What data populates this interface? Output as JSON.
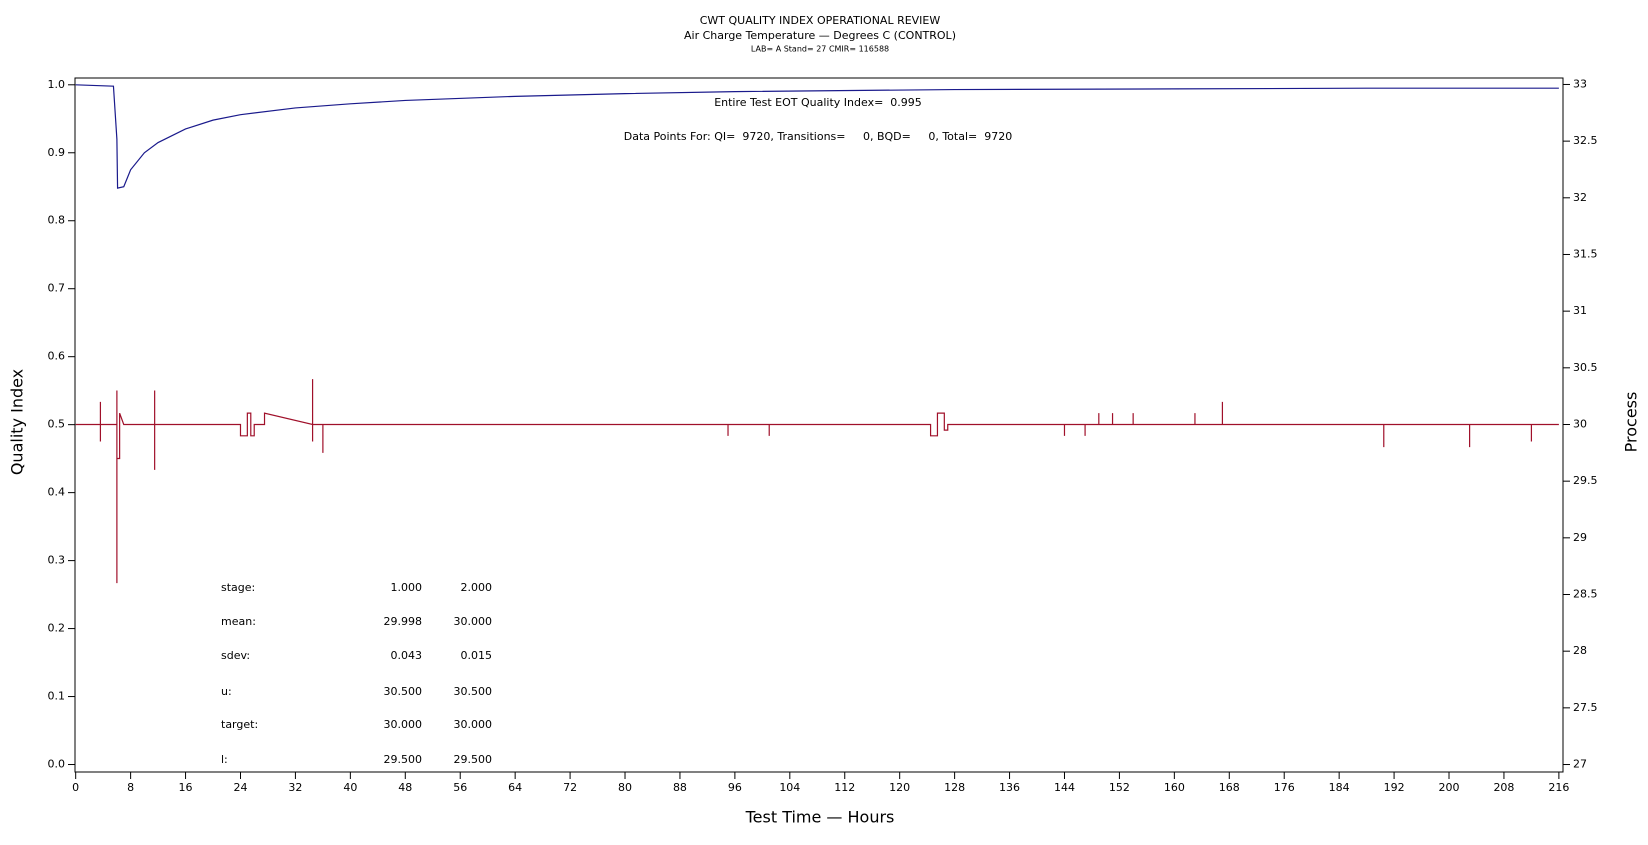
{
  "chart_data": {
    "type": "line",
    "title": "CWT QUALITY INDEX OPERATIONAL REVIEW",
    "subtitles": [
      "Air Charge Temperature — Degrees C (CONTROL)",
      "LAB= A Stand= 27 CMIR= 116588"
    ],
    "xlabel": "Test Time — Hours",
    "ylabel": "Quality Index",
    "y2label": "Process",
    "xlim": [
      -0.1,
      216.6
    ],
    "xticks": [
      0,
      8,
      16,
      24,
      32,
      40,
      48,
      56,
      64,
      72,
      80,
      88,
      96,
      104,
      112,
      120,
      128,
      136,
      144,
      152,
      160,
      168,
      176,
      184,
      192,
      200,
      208,
      216
    ],
    "ylim": [
      -0.011,
      1.01
    ],
    "yticks": [
      {
        "value": 0,
        "label": "0.0"
      },
      0.1,
      0.2,
      0.3,
      0.4,
      0.5,
      0.6,
      0.7,
      0.8,
      0.9,
      {
        "value": 1,
        "label": "1.0"
      }
    ],
    "y2lim": [
      26.934,
      33.057
    ],
    "y2ticks": [
      27,
      27.5,
      28,
      28.5,
      29,
      29.5,
      30,
      30.5,
      31,
      31.5,
      32,
      32.5,
      33
    ],
    "series": [
      {
        "name": "Quality Index",
        "color": "#1a1a8c",
        "x": [
          0,
          5.5,
          6,
          6.1,
          7,
          8,
          10,
          12,
          16,
          20,
          24,
          32,
          40,
          48,
          64,
          80,
          96,
          128,
          160,
          188,
          216
        ],
        "values": [
          1.0,
          0.998,
          0.92,
          0.848,
          0.85,
          0.875,
          0.9,
          0.915,
          0.935,
          0.948,
          0.956,
          0.966,
          0.972,
          0.977,
          0.983,
          0.987,
          0.99,
          0.993,
          0.994,
          0.995,
          0.995
        ]
      },
      {
        "name": "Process",
        "color": "#a0102a",
        "axis": "y2",
        "x": [
          0,
          3.6,
          3.6,
          3.6,
          3.6,
          6,
          6,
          6,
          6,
          6.4,
          6.4,
          7,
          11.5,
          11.5,
          11.5,
          11.5,
          24,
          24,
          25,
          25,
          25.5,
          25.5,
          26,
          26,
          27.5,
          27.5,
          34.5,
          34.5,
          34.5,
          34.5,
          36,
          36,
          36,
          95,
          95,
          95,
          101,
          101,
          101,
          124.5,
          124.5,
          125.5,
          125.5,
          126.5,
          126.5,
          127,
          127,
          144,
          144,
          144,
          147,
          147,
          147,
          149,
          149,
          149,
          151,
          151,
          151,
          154,
          154,
          154,
          163,
          163,
          163,
          167,
          167,
          167,
          190.5,
          190.5,
          190.5,
          203,
          203,
          203,
          212,
          212,
          212,
          216
        ],
        "values": [
          30,
          30,
          30.2,
          29.85,
          30,
          30,
          28.6,
          30.3,
          29.7,
          29.7,
          30.1,
          30,
          30,
          30.3,
          29.6,
          30,
          30,
          29.9,
          29.9,
          30.1,
          30.1,
          29.9,
          29.9,
          30,
          30,
          30.1,
          30,
          30.4,
          29.85,
          30,
          30,
          29.75,
          30,
          30,
          29.9,
          30,
          30,
          29.9,
          30,
          30,
          29.9,
          29.9,
          30.1,
          30.1,
          29.95,
          29.95,
          30,
          30,
          29.9,
          30,
          30,
          29.9,
          30,
          30,
          30.1,
          30,
          30,
          30.1,
          30,
          30,
          30.1,
          30,
          30,
          30.1,
          30,
          30,
          30.2,
          30,
          30,
          29.8,
          30,
          30,
          29.8,
          30,
          30,
          29.85,
          30,
          30
        ]
      }
    ],
    "annotations": [
      "Entire Test EOT Quality Index=  0.995",
      "Data Points For: QI=  9720, Transitions=     0, BQD=     0, Total=  9720"
    ],
    "stats": [
      [
        "stage:",
        "1.000",
        "2.000"
      ],
      [
        "mean:",
        "29.998",
        "30.000"
      ],
      [
        "sdev:",
        "0.043",
        "0.015"
      ],
      [
        "u:",
        "30.500",
        "30.500"
      ],
      [
        "target:",
        "30.000",
        "30.000"
      ],
      [
        "l:",
        "29.500",
        "29.500"
      ]
    ]
  }
}
